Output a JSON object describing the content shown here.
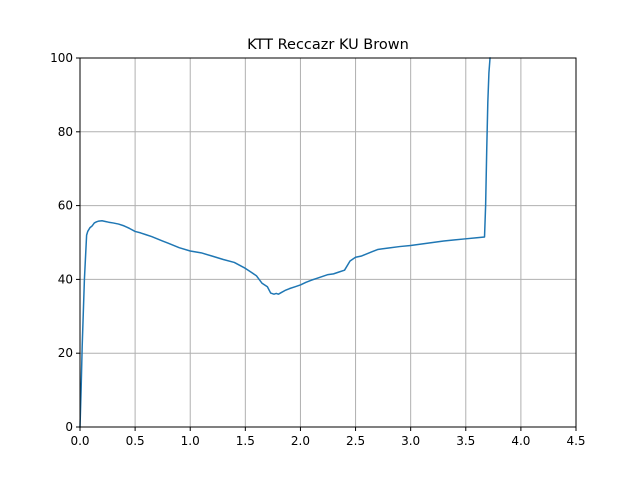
{
  "chart_data": {
    "type": "line",
    "title": "KTT Reccazr KU Brown",
    "xlabel": "",
    "ylabel": "",
    "xlim": [
      0,
      4.5
    ],
    "ylim": [
      0,
      100
    ],
    "xticks": [
      0.0,
      0.5,
      1.0,
      1.5,
      2.0,
      2.5,
      3.0,
      3.5,
      4.0,
      4.5
    ],
    "xtick_labels": [
      "0.0",
      "0.5",
      "1.0",
      "1.5",
      "2.0",
      "2.5",
      "3.0",
      "3.5",
      "4.0",
      "4.5"
    ],
    "yticks": [
      0,
      20,
      40,
      60,
      80,
      100
    ],
    "ytick_labels": [
      "0",
      "20",
      "40",
      "60",
      "80",
      "100"
    ],
    "grid": true,
    "series": [
      {
        "color": "#1f77b4",
        "x": [
          0.0,
          0.01,
          0.02,
          0.04,
          0.06,
          0.07,
          0.09,
          0.11,
          0.13,
          0.15,
          0.17,
          0.2,
          0.23,
          0.26,
          0.3,
          0.35,
          0.4,
          0.45,
          0.5,
          0.55,
          0.6,
          0.65,
          0.7,
          0.75,
          0.8,
          0.9,
          1.0,
          1.1,
          1.2,
          1.3,
          1.4,
          1.5,
          1.55,
          1.6,
          1.65,
          1.7,
          1.73,
          1.76,
          1.78,
          1.8,
          1.83,
          1.86,
          1.9,
          1.95,
          2.0,
          2.05,
          2.1,
          2.15,
          2.2,
          2.25,
          2.3,
          2.35,
          2.4,
          2.45,
          2.5,
          2.55,
          2.6,
          2.65,
          2.7,
          2.8,
          2.9,
          3.0,
          3.1,
          3.2,
          3.3,
          3.4,
          3.5,
          3.6,
          3.67,
          3.68,
          3.69,
          3.7,
          3.71,
          3.72
        ],
        "y": [
          0,
          10,
          22,
          40,
          52,
          53,
          54,
          54.5,
          55.3,
          55.6,
          55.8,
          55.9,
          55.7,
          55.5,
          55.3,
          55,
          54.5,
          53.8,
          53,
          52.6,
          52.1,
          51.6,
          51,
          50.4,
          49.8,
          48.6,
          47.7,
          47.2,
          46.3,
          45.4,
          44.6,
          43,
          42,
          41,
          39,
          38,
          36.3,
          36,
          36.2,
          36,
          36.5,
          37,
          37.5,
          38,
          38.5,
          39.2,
          39.8,
          40.3,
          40.8,
          41.3,
          41.5,
          42,
          42.5,
          45,
          46,
          46.3,
          46.9,
          47.5,
          48.1,
          48.5,
          48.9,
          49.2,
          49.6,
          50,
          50.4,
          50.7,
          51,
          51.3,
          51.5,
          60,
          75,
          88,
          96,
          100
        ]
      }
    ]
  }
}
